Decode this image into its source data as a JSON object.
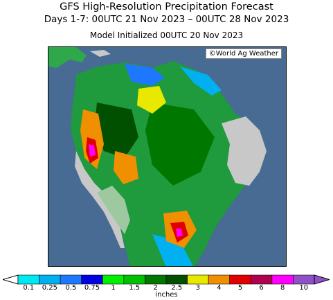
{
  "header": {
    "title": "GFS High-Resolution Precipitation Forecast",
    "subtitle": "Days 1-7: 00UTC 21 Nov 2023 – 00UTC 28 Nov 2023",
    "init": "Model Initialized 00UTC 20 Nov 2023"
  },
  "map": {
    "credit": "©World Ag Weather",
    "ocean_color": "#476b92",
    "land_color": "#c8c8c8"
  },
  "legend": {
    "units": "inches",
    "levels": [
      "0.1",
      "0.25",
      "0.5",
      "0.75",
      "1",
      "1.5",
      "2",
      "2.5",
      "3",
      "4",
      "5",
      "6",
      "8",
      "10"
    ],
    "colors": [
      "#00e8f0",
      "#00b0f0",
      "#1e78ff",
      "#0000e0",
      "#00f000",
      "#00c000",
      "#007800",
      "#005000",
      "#e8e800",
      "#f09000",
      "#e00000",
      "#b00050",
      "#ff00ff",
      "#9050c8"
    ]
  }
}
